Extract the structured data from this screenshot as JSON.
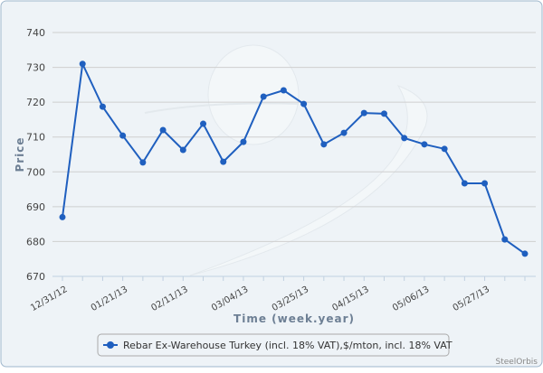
{
  "chart_data": {
    "type": "line",
    "xlabel": "Time (week.year)",
    "ylabel": "Price",
    "ylim": [
      670,
      740
    ],
    "yticks": [
      670,
      680,
      690,
      700,
      710,
      720,
      730,
      740
    ],
    "grid": true,
    "legend_position": "bottom",
    "x": [
      "12/31/12",
      "01/07/13",
      "01/14/13",
      "01/21/13",
      "01/28/13",
      "02/04/13",
      "02/11/13",
      "02/18/13",
      "02/25/13",
      "03/04/13",
      "03/11/13",
      "03/18/13",
      "03/25/13",
      "04/01/13",
      "04/08/13",
      "04/15/13",
      "04/22/13",
      "04/29/13",
      "05/06/13",
      "05/13/13",
      "05/20/13",
      "05/27/13",
      "06/03/13",
      "06/10/13"
    ],
    "xtick_labels": [
      "12/31/12",
      "01/21/13",
      "02/11/13",
      "03/04/13",
      "03/25/13",
      "04/15/13",
      "05/06/13",
      "05/27/13"
    ],
    "series": [
      {
        "name": "Rebar Ex-Warehouse Turkey (incl. 18% VAT),$/mton, incl. 18% VAT",
        "color": "#1f5fbf",
        "values": [
          687,
          731,
          718.7,
          710.4,
          702.7,
          712,
          706.3,
          713.8,
          702.9,
          708.6,
          721.6,
          723.4,
          719.5,
          707.9,
          711.2,
          716.9,
          716.7,
          709.7,
          707.9,
          706.6,
          696.7,
          696.7,
          680.6,
          676.5
        ]
      }
    ],
    "credit": "SteelOrbis"
  }
}
